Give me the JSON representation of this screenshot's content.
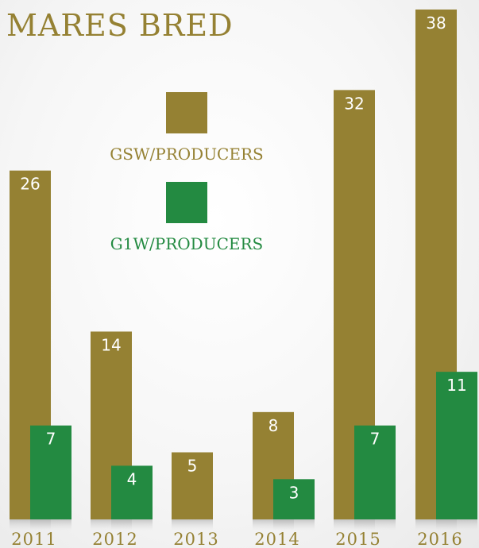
{
  "title": "MARES BRED",
  "colors": {
    "gsw": "#958133",
    "g1w": "#238a41"
  },
  "chart_data": {
    "type": "bar",
    "title": "MARES BRED",
    "categories": [
      "2011",
      "2012",
      "2013",
      "2014",
      "2015",
      "2016"
    ],
    "series": [
      {
        "name": "GSW/PRODUCERS",
        "values": [
          26,
          14,
          5,
          8,
          32,
          38
        ]
      },
      {
        "name": "G1W/PRODUCERS",
        "values": [
          7,
          4,
          null,
          3,
          7,
          11
        ]
      }
    ],
    "legend_position": "top-center",
    "grid": false,
    "ylim": [
      0,
      38
    ]
  }
}
